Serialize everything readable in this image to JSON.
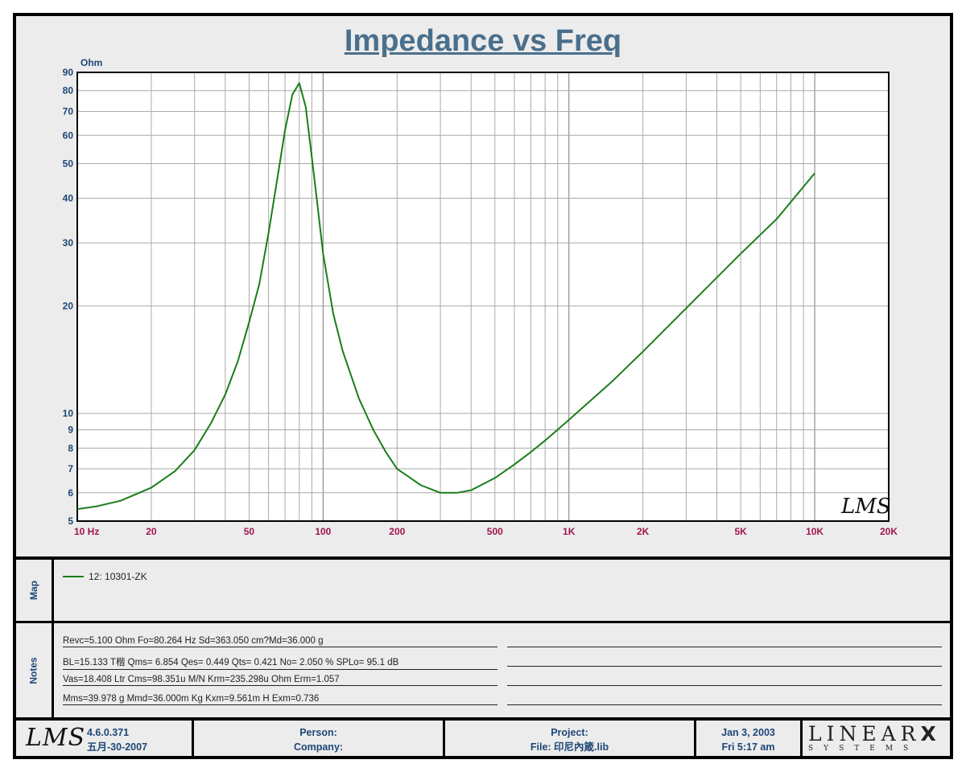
{
  "title": "Impedance vs Freq",
  "chart_data": {
    "type": "line",
    "title": "Impedance vs Freq",
    "ylabel": "Ohm",
    "xlabel": "Hz",
    "x_scale": "log",
    "y_scale": "log",
    "xlim": [
      10,
      20000
    ],
    "ylim": [
      5,
      90
    ],
    "grid": true,
    "x_ticks": [
      {
        "v": 10,
        "label": "10  Hz"
      },
      {
        "v": 20,
        "label": "20"
      },
      {
        "v": 50,
        "label": "50"
      },
      {
        "v": 100,
        "label": "100"
      },
      {
        "v": 200,
        "label": "200"
      },
      {
        "v": 500,
        "label": "500"
      },
      {
        "v": 1000,
        "label": "1K"
      },
      {
        "v": 2000,
        "label": "2K"
      },
      {
        "v": 5000,
        "label": "5K"
      },
      {
        "v": 10000,
        "label": "10K"
      },
      {
        "v": 20000,
        "label": "20K"
      }
    ],
    "y_ticks": [
      {
        "v": 5,
        "label": "5"
      },
      {
        "v": 6,
        "label": "6"
      },
      {
        "v": 7,
        "label": "7"
      },
      {
        "v": 8,
        "label": "8"
      },
      {
        "v": 9,
        "label": "9"
      },
      {
        "v": 10,
        "label": "10"
      },
      {
        "v": 20,
        "label": "20"
      },
      {
        "v": 30,
        "label": "30"
      },
      {
        "v": 40,
        "label": "40"
      },
      {
        "v": 50,
        "label": "50"
      },
      {
        "v": 60,
        "label": "60"
      },
      {
        "v": 70,
        "label": "70"
      },
      {
        "v": 80,
        "label": "80"
      },
      {
        "v": 90,
        "label": "90"
      }
    ],
    "series": [
      {
        "name": "12: 10301-ZK",
        "color": "#1a7d1a",
        "x": [
          10,
          12,
          15,
          20,
          25,
          30,
          35,
          40,
          45,
          50,
          55,
          60,
          65,
          70,
          75,
          80,
          85,
          90,
          95,
          100,
          110,
          120,
          140,
          160,
          180,
          200,
          250,
          300,
          350,
          400,
          500,
          600,
          700,
          800,
          1000,
          1500,
          2000,
          3000,
          5000,
          7000,
          10000
        ],
        "y": [
          5.4,
          5.5,
          5.7,
          6.2,
          6.9,
          7.9,
          9.4,
          11.3,
          14.0,
          18.0,
          23.0,
          32.0,
          45.0,
          62.0,
          78.0,
          84.0,
          72.0,
          52.0,
          38.0,
          28.0,
          19.0,
          15.0,
          11.0,
          9.0,
          7.8,
          7.0,
          6.3,
          6.0,
          6.0,
          6.1,
          6.6,
          7.2,
          7.8,
          8.4,
          9.6,
          12.3,
          14.9,
          19.7,
          28.0,
          35.0,
          47.0
        ]
      }
    ]
  },
  "watermark": "LMS",
  "map": {
    "label": "Map",
    "legend": [
      {
        "name": "12: 10301-ZK",
        "color": "#1a7d1a"
      }
    ]
  },
  "notes": {
    "label": "Notes",
    "lines": [
      "Revc=5.100 Ohm  Fo=80.264 Hz  Sd=363.050 cm?Md=36.000 g",
      "BL=15.133 T楷  Qms= 6.854  Qes= 0.449  Qts= 0.421  No= 2.050 %  SPLo= 95.1 dB",
      "Vas=18.408 Ltr  Cms=98.351u M/N  Krm=235.298u Ohm  Erm=1.057",
      "Mms=39.978 g  Mmd=36.000m Kg  Kxm=9.561m H  Exm=0.736"
    ]
  },
  "footer": {
    "logo": "LMS",
    "version": "4.6.0.371",
    "version_date": "五月-30-2007",
    "person_label": "Person:",
    "company_label": "Company:",
    "project_label": "Project:",
    "file_label": "File: 印尼內箴.lib",
    "date": "Jan  3, 2003",
    "time": "Fri  5:17 am",
    "brand_top": "LINEAR",
    "brand_x": "X",
    "brand_bottom": "SYSTEMS"
  }
}
